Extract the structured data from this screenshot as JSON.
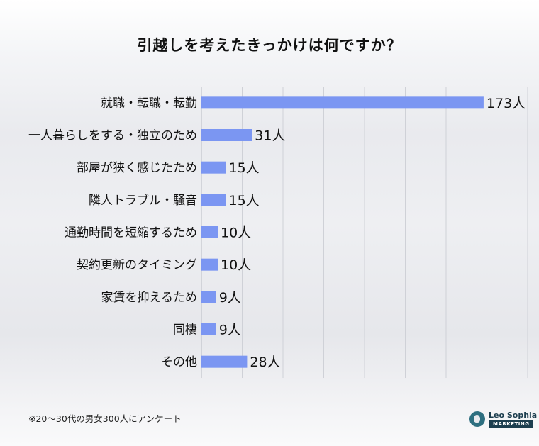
{
  "chart_data": {
    "type": "bar",
    "orientation": "horizontal",
    "title": "引越しを考えたきっかけは何ですか？",
    "categories": [
      "就職・転職・転勤",
      "一人暮らしをする・独立のため",
      "部屋が狭く感じたため",
      "隣人トラブル・騒音",
      "通勤時間を短縮するため",
      "契約更新のタイミング",
      "家賃を抑えるため",
      "同棲",
      "その他"
    ],
    "values": [
      173,
      31,
      15,
      15,
      10,
      10,
      9,
      9,
      28
    ],
    "value_labels": [
      "173人",
      "31人",
      "15人",
      "15人",
      "10人",
      "10人",
      "9人",
      "9人",
      "28人"
    ],
    "xlim": [
      0,
      200
    ],
    "grid": true,
    "bar_color": "#7b96f2"
  },
  "footnote": "※20〜30代の男女300人にアンケート",
  "logo": {
    "brand": "Leo Sophia",
    "sub": "MARKETING",
    "icon": "lion-head-icon"
  }
}
